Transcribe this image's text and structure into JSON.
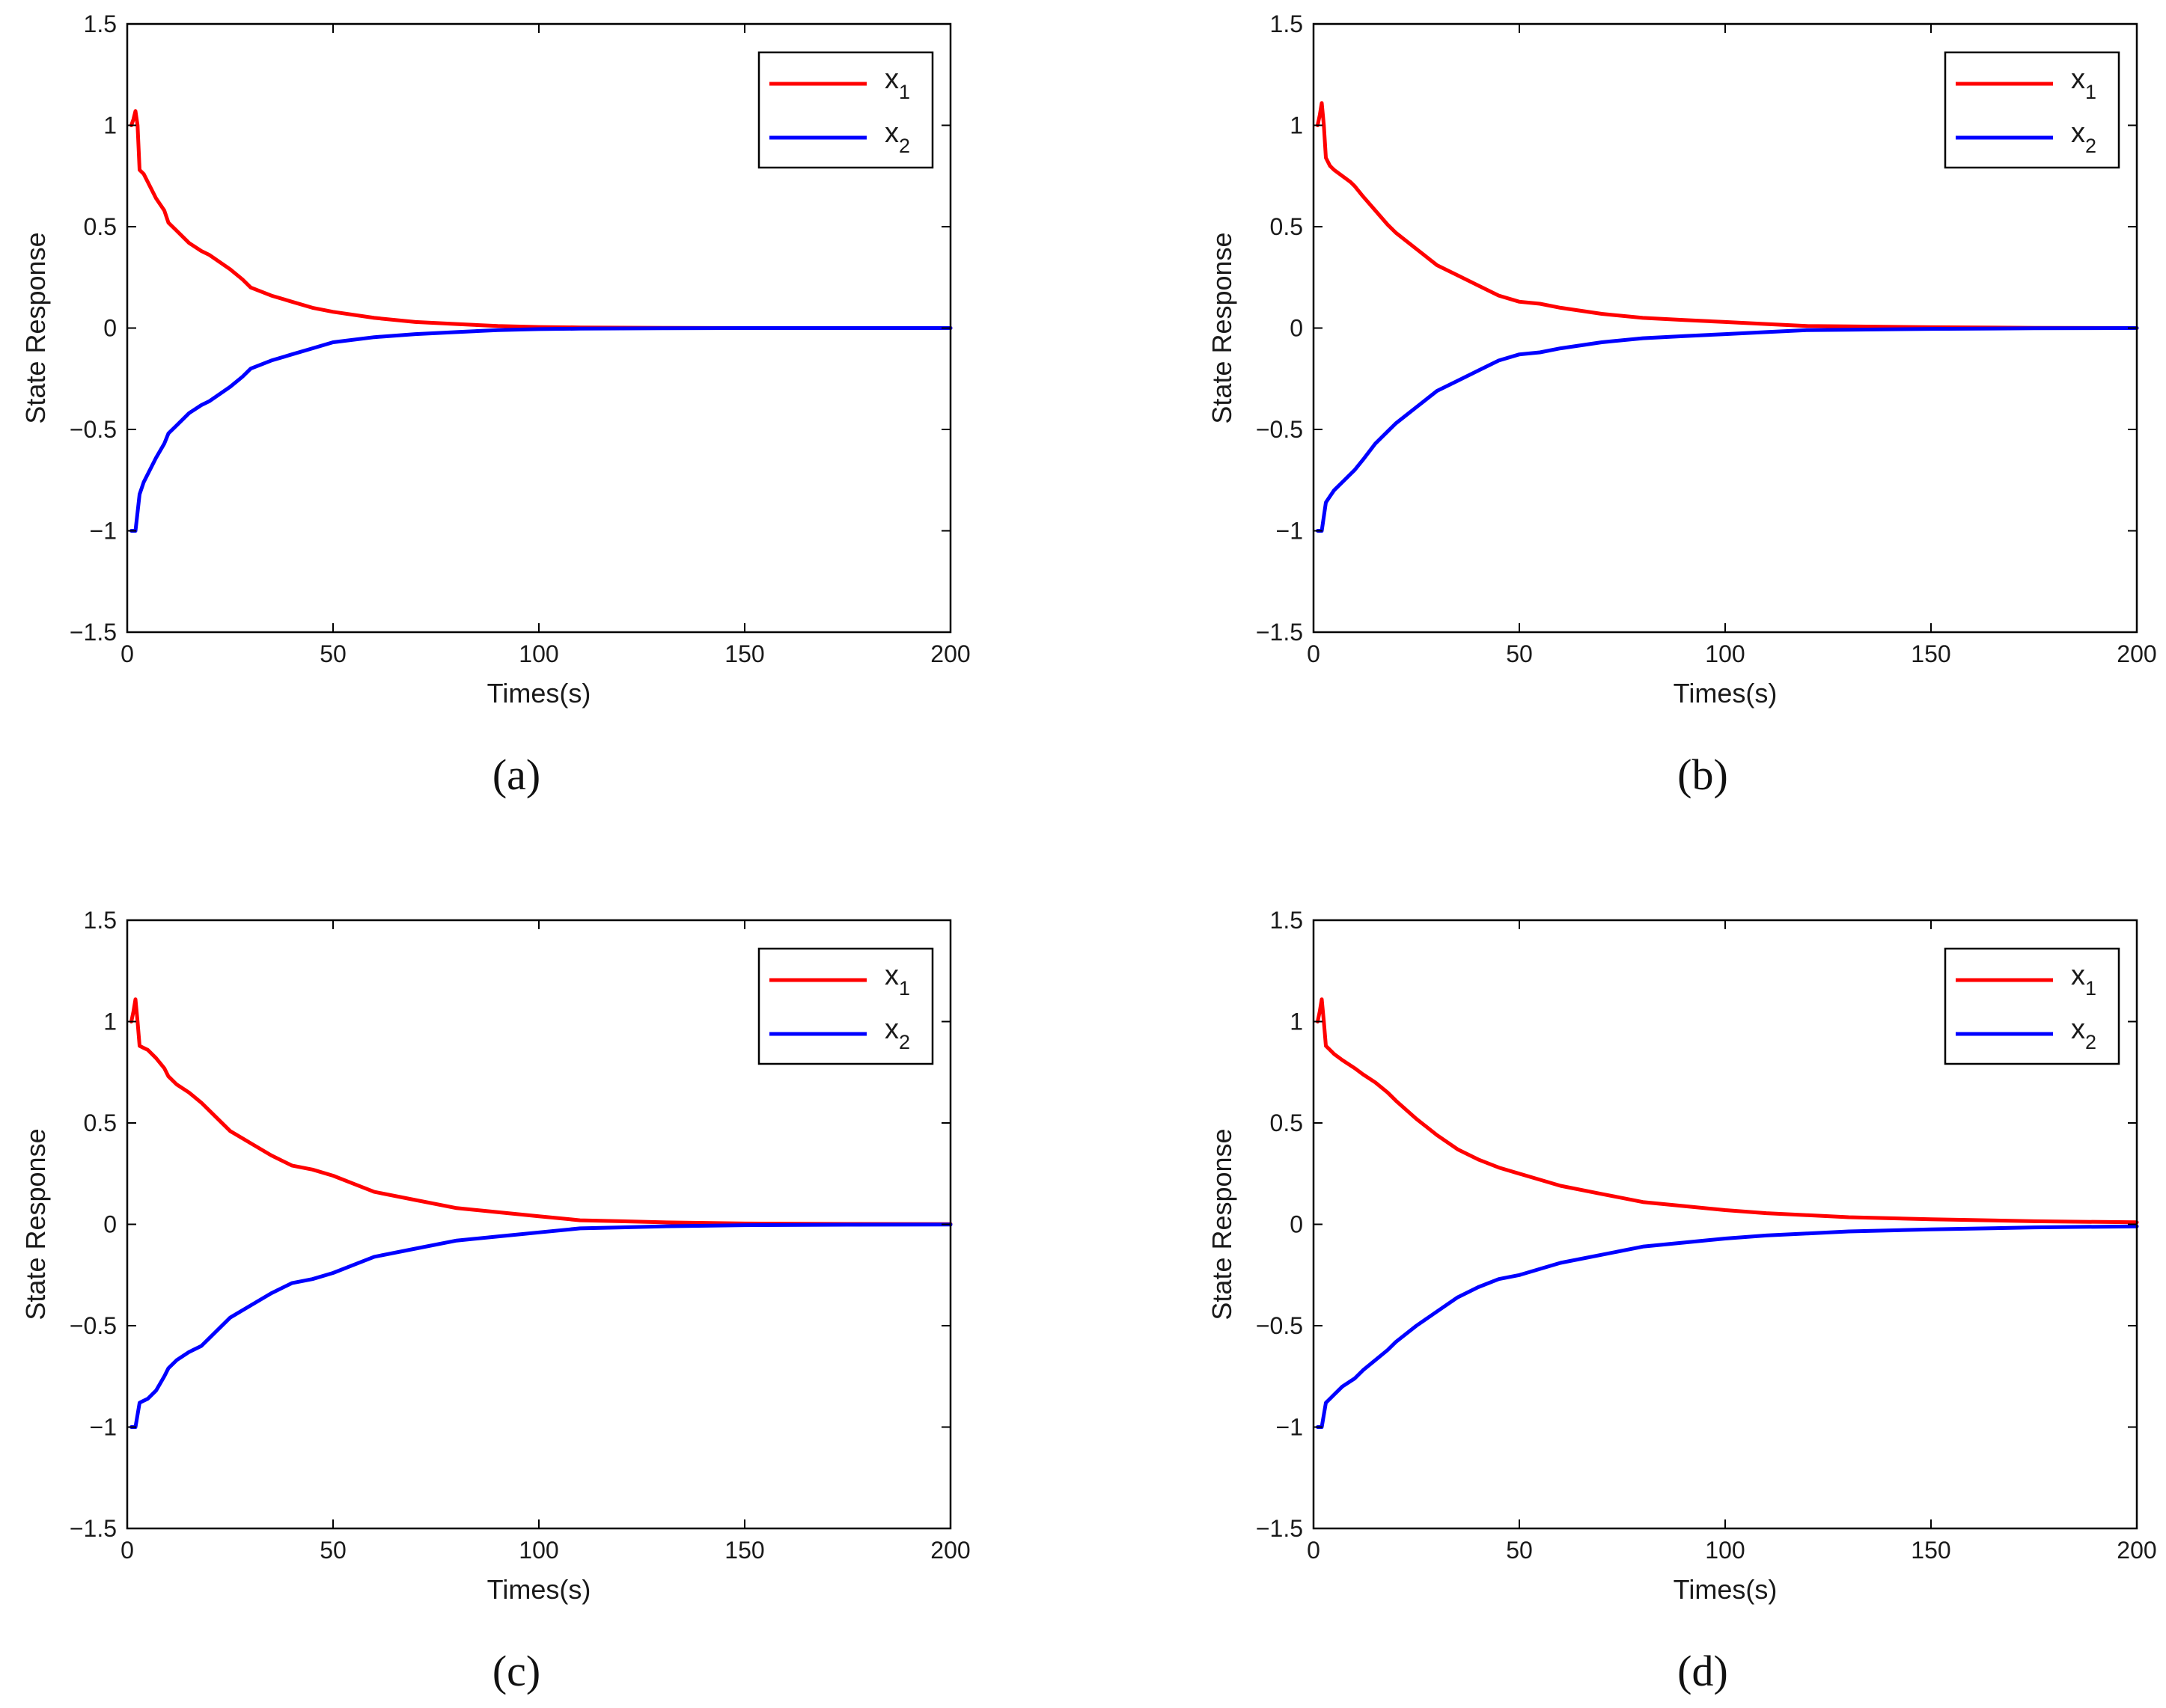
{
  "figure": {
    "captions": [
      "(a)",
      "(b)",
      "(c)",
      "(d)"
    ]
  },
  "colors": {
    "x1": "#ff0000",
    "x2": "#0000ff",
    "axis": "#000000",
    "text": "#1a1a1a"
  },
  "chart_data": [
    {
      "type": "line",
      "caption": "(a)",
      "xlabel": "Times(s)",
      "ylabel": "State Response",
      "xlim": [
        0,
        200
      ],
      "ylim": [
        -1.5,
        1.5
      ],
      "xticks": [
        0,
        50,
        100,
        150,
        200
      ],
      "yticks": [
        -1.5,
        -1,
        -0.5,
        0,
        0.5,
        1,
        1.5
      ],
      "xtick_labels": [
        "0",
        "50",
        "100",
        "150",
        "200"
      ],
      "ytick_labels": [
        "−1.5",
        "−1",
        "−0.5",
        "0",
        "0.5",
        "1",
        "1.5"
      ],
      "legend": {
        "position": "top-right",
        "entries": [
          {
            "base": "x",
            "sub": "1"
          },
          {
            "base": "x",
            "sub": "2"
          }
        ]
      },
      "series": [
        {
          "name": "x_1",
          "color": "#ff0000",
          "x": [
            1,
            1.5,
            2,
            2.5,
            3,
            4,
            5,
            7,
            9,
            10,
            12,
            15,
            18,
            20,
            25,
            28,
            30,
            35,
            40,
            45,
            50,
            60,
            70,
            80,
            90,
            100,
            110,
            120,
            130,
            150,
            200
          ],
          "y": [
            1.0,
            1.03,
            1.07,
            1.0,
            0.78,
            0.76,
            0.72,
            0.64,
            0.58,
            0.52,
            0.48,
            0.42,
            0.38,
            0.36,
            0.29,
            0.24,
            0.2,
            0.16,
            0.13,
            0.1,
            0.08,
            0.05,
            0.03,
            0.02,
            0.01,
            0.005,
            0.003,
            0.002,
            0.001,
            0,
            0
          ]
        },
        {
          "name": "x_2",
          "color": "#0000ff",
          "x": [
            1,
            2,
            3,
            4,
            5,
            7,
            9,
            10,
            12,
            15,
            18,
            20,
            25,
            28,
            30,
            35,
            40,
            45,
            50,
            60,
            70,
            80,
            90,
            100,
            110,
            120,
            130,
            150,
            200
          ],
          "y": [
            -1.0,
            -1.0,
            -0.82,
            -0.76,
            -0.72,
            -0.64,
            -0.57,
            -0.52,
            -0.48,
            -0.42,
            -0.38,
            -0.36,
            -0.29,
            -0.24,
            -0.2,
            -0.16,
            -0.13,
            -0.1,
            -0.07,
            -0.045,
            -0.03,
            -0.02,
            -0.01,
            -0.005,
            -0.003,
            -0.002,
            -0.001,
            0,
            0
          ]
        }
      ]
    },
    {
      "type": "line",
      "caption": "(b)",
      "xlabel": "Times(s)",
      "ylabel": "State Response",
      "xlim": [
        0,
        200
      ],
      "ylim": [
        -1.5,
        1.5
      ],
      "xticks": [
        0,
        50,
        100,
        150,
        200
      ],
      "yticks": [
        -1.5,
        -1,
        -0.5,
        0,
        0.5,
        1,
        1.5
      ],
      "xtick_labels": [
        "0",
        "50",
        "100",
        "150",
        "200"
      ],
      "ytick_labels": [
        "−1.5",
        "−1",
        "−0.5",
        "0",
        "0.5",
        "1",
        "1.5"
      ],
      "legend": {
        "position": "top-right",
        "entries": [
          {
            "base": "x",
            "sub": "1"
          },
          {
            "base": "x",
            "sub": "2"
          }
        ]
      },
      "series": [
        {
          "name": "x_1",
          "color": "#ff0000",
          "x": [
            1,
            1.5,
            2,
            2.5,
            3,
            4,
            5,
            7,
            9,
            10,
            12,
            15,
            18,
            20,
            25,
            30,
            35,
            40,
            45,
            50,
            55,
            60,
            70,
            80,
            90,
            100,
            110,
            120,
            130,
            150,
            175,
            200
          ],
          "y": [
            1.0,
            1.05,
            1.11,
            1.0,
            0.84,
            0.8,
            0.78,
            0.75,
            0.72,
            0.7,
            0.65,
            0.58,
            0.51,
            0.47,
            0.39,
            0.31,
            0.26,
            0.21,
            0.16,
            0.13,
            0.12,
            0.1,
            0.07,
            0.05,
            0.04,
            0.03,
            0.02,
            0.01,
            0.008,
            0.004,
            0.001,
            0
          ]
        },
        {
          "name": "x_2",
          "color": "#0000ff",
          "x": [
            1,
            2,
            3,
            4,
            5,
            7,
            9,
            10,
            12,
            15,
            18,
            20,
            25,
            30,
            35,
            40,
            45,
            50,
            55,
            60,
            70,
            80,
            90,
            100,
            110,
            120,
            130,
            150,
            175,
            200
          ],
          "y": [
            -1.0,
            -1.0,
            -0.86,
            -0.83,
            -0.8,
            -0.76,
            -0.72,
            -0.7,
            -0.65,
            -0.57,
            -0.51,
            -0.47,
            -0.39,
            -0.31,
            -0.26,
            -0.21,
            -0.16,
            -0.13,
            -0.12,
            -0.1,
            -0.07,
            -0.05,
            -0.04,
            -0.03,
            -0.02,
            -0.01,
            -0.008,
            -0.004,
            -0.001,
            0
          ]
        }
      ]
    },
    {
      "type": "line",
      "caption": "(c)",
      "xlabel": "Times(s)",
      "ylabel": "State Response",
      "xlim": [
        0,
        200
      ],
      "ylim": [
        -1.5,
        1.5
      ],
      "xticks": [
        0,
        50,
        100,
        150,
        200
      ],
      "yticks": [
        -1.5,
        -1,
        -0.5,
        0,
        0.5,
        1,
        1.5
      ],
      "xtick_labels": [
        "0",
        "50",
        "100",
        "150",
        "200"
      ],
      "ytick_labels": [
        "−1.5",
        "−1",
        "−0.5",
        "0",
        "0.5",
        "1",
        "1.5"
      ],
      "legend": {
        "position": "top-right",
        "entries": [
          {
            "base": "x",
            "sub": "1"
          },
          {
            "base": "x",
            "sub": "2"
          }
        ]
      },
      "series": [
        {
          "name": "x_1",
          "color": "#ff0000",
          "x": [
            1,
            1.5,
            2,
            2.5,
            3,
            4,
            5,
            7,
            9,
            10,
            12,
            15,
            18,
            20,
            25,
            30,
            35,
            40,
            45,
            50,
            55,
            60,
            70,
            80,
            90,
            100,
            110,
            120,
            130,
            150,
            175,
            200
          ],
          "y": [
            1.0,
            1.05,
            1.11,
            1.0,
            0.88,
            0.87,
            0.86,
            0.82,
            0.77,
            0.73,
            0.69,
            0.65,
            0.6,
            0.56,
            0.46,
            0.4,
            0.34,
            0.29,
            0.27,
            0.24,
            0.2,
            0.16,
            0.12,
            0.08,
            0.06,
            0.04,
            0.02,
            0.015,
            0.01,
            0.004,
            0.002,
            0.001
          ]
        },
        {
          "name": "x_2",
          "color": "#0000ff",
          "x": [
            1,
            2,
            3,
            4,
            5,
            7,
            9,
            10,
            12,
            15,
            18,
            20,
            25,
            30,
            35,
            40,
            45,
            50,
            55,
            60,
            70,
            80,
            90,
            100,
            110,
            120,
            130,
            150,
            175,
            200
          ],
          "y": [
            -1.0,
            -1.0,
            -0.88,
            -0.87,
            -0.86,
            -0.82,
            -0.75,
            -0.71,
            -0.67,
            -0.63,
            -0.6,
            -0.56,
            -0.46,
            -0.4,
            -0.34,
            -0.29,
            -0.27,
            -0.24,
            -0.2,
            -0.16,
            -0.12,
            -0.08,
            -0.06,
            -0.04,
            -0.02,
            -0.015,
            -0.01,
            -0.004,
            -0.002,
            -0.001
          ]
        }
      ]
    },
    {
      "type": "line",
      "caption": "(d)",
      "xlabel": "Times(s)",
      "ylabel": "State Response",
      "xlim": [
        0,
        200
      ],
      "ylim": [
        -1.5,
        1.5
      ],
      "xticks": [
        0,
        50,
        100,
        150,
        200
      ],
      "yticks": [
        -1.5,
        -1,
        -0.5,
        0,
        0.5,
        1,
        1.5
      ],
      "xtick_labels": [
        "0",
        "50",
        "100",
        "150",
        "200"
      ],
      "ytick_labels": [
        "−1.5",
        "−1",
        "−0.5",
        "0",
        "0.5",
        "1",
        "1.5"
      ],
      "legend": {
        "position": "top-right",
        "entries": [
          {
            "base": "x",
            "sub": "1"
          },
          {
            "base": "x",
            "sub": "2"
          }
        ]
      },
      "series": [
        {
          "name": "x_1",
          "color": "#ff0000",
          "x": [
            1,
            1.5,
            2,
            2.5,
            3,
            4,
            5,
            7,
            10,
            12,
            15,
            18,
            20,
            25,
            30,
            35,
            40,
            45,
            50,
            55,
            60,
            70,
            80,
            90,
            100,
            110,
            120,
            130,
            150,
            175,
            200
          ],
          "y": [
            1.0,
            1.05,
            1.11,
            1.0,
            0.88,
            0.86,
            0.84,
            0.81,
            0.77,
            0.74,
            0.7,
            0.65,
            0.61,
            0.52,
            0.44,
            0.37,
            0.32,
            0.28,
            0.25,
            0.22,
            0.19,
            0.15,
            0.11,
            0.09,
            0.07,
            0.055,
            0.045,
            0.035,
            0.025,
            0.015,
            0.01
          ]
        },
        {
          "name": "x_2",
          "color": "#0000ff",
          "x": [
            1,
            2,
            3,
            4,
            5,
            7,
            10,
            12,
            15,
            18,
            20,
            25,
            30,
            35,
            40,
            45,
            50,
            55,
            60,
            70,
            80,
            90,
            100,
            110,
            120,
            130,
            150,
            175,
            200
          ],
          "y": [
            -1.0,
            -1.0,
            -0.88,
            -0.86,
            -0.84,
            -0.8,
            -0.76,
            -0.72,
            -0.67,
            -0.62,
            -0.58,
            -0.5,
            -0.43,
            -0.36,
            -0.31,
            -0.27,
            -0.25,
            -0.22,
            -0.19,
            -0.15,
            -0.11,
            -0.09,
            -0.07,
            -0.055,
            -0.045,
            -0.035,
            -0.025,
            -0.015,
            -0.01
          ]
        }
      ]
    }
  ]
}
